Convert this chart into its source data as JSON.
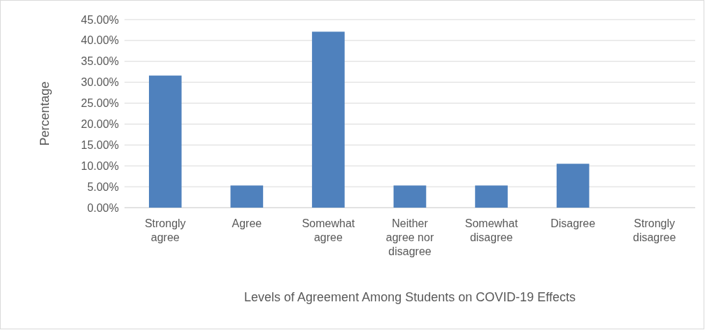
{
  "chart_data": {
    "type": "bar",
    "categories": [
      "Strongly agree",
      "Agree",
      "Somewhat agree",
      "Neither agree nor disagree",
      "Somewhat disagree",
      "Disagree",
      "Strongly disagree"
    ],
    "values": [
      31.6,
      5.3,
      42.1,
      5.3,
      5.3,
      10.5,
      0
    ],
    "color": "#4f81bd",
    "xlabel": "Levels of Agreement Among Students on COVID-19 Effects",
    "ylabel": "Percentage",
    "ylim": [
      0,
      45
    ],
    "yticks": [
      {
        "value": 0,
        "label": "0.00%"
      },
      {
        "value": 5,
        "label": "5.00%"
      },
      {
        "value": 10,
        "label": "10.00%"
      },
      {
        "value": 15,
        "label": "15.00%"
      },
      {
        "value": 20,
        "label": "20.00%"
      },
      {
        "value": 25,
        "label": "25.00%"
      },
      {
        "value": 30,
        "label": "30.00%"
      },
      {
        "value": 35,
        "label": "35.00%"
      },
      {
        "value": 40,
        "label": "40.00%"
      },
      {
        "value": 45,
        "label": "45.00%"
      }
    ],
    "grid": "y"
  }
}
